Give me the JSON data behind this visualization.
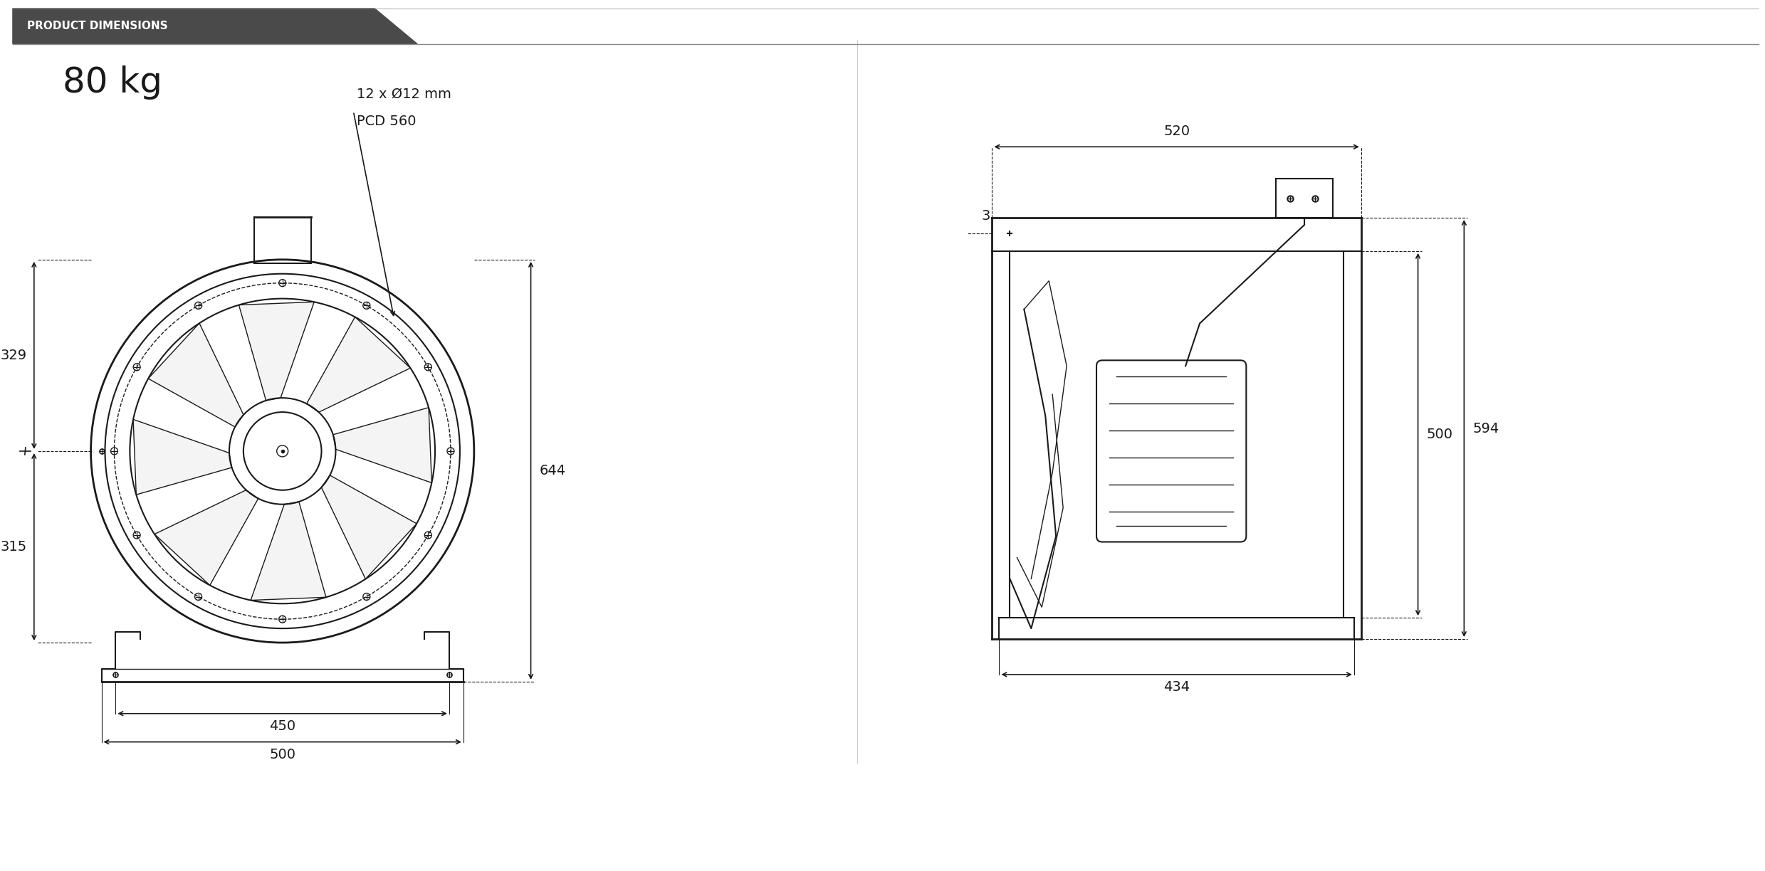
{
  "title_bar_text": "PRODUCT DIMENSIONS",
  "weight_text": "80 kg",
  "bg_color": "#ffffff",
  "line_color": "#1a1a1a",
  "title_bg_color": "#4a4a4a",
  "title_text_color": "#ffffff",
  "dim_color": "#1a1a1a",
  "annotation_hole": "12 x Ø12 mm",
  "annotation_pcd": "PCD 560",
  "dim_329": "329",
  "dim_315": "315",
  "dim_644": "644",
  "dim_450": "450",
  "dim_500": "500",
  "dim_520": "520",
  "dim_3": "3",
  "dim_500_right": "500",
  "dim_594": "594",
  "dim_434": "434"
}
